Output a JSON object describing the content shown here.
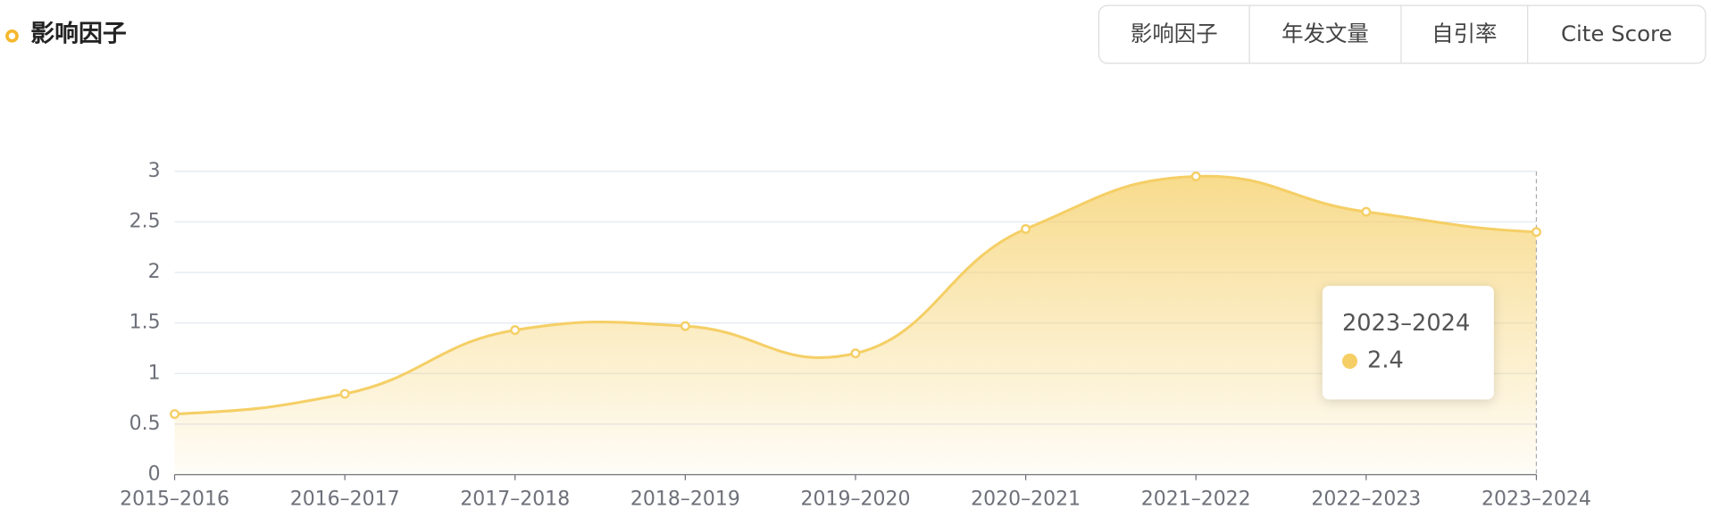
{
  "chart_data": {
    "type": "line",
    "title": "影响因子",
    "categories": [
      "2015–2016",
      "2016–2017",
      "2017–2018",
      "2018–2019",
      "2019–2020",
      "2020–2021",
      "2021–2022",
      "2022–2023",
      "2023–2024"
    ],
    "values": [
      0.6,
      0.8,
      1.43,
      1.47,
      1.2,
      2.43,
      2.95,
      2.6,
      2.4
    ],
    "color": "#f5cf66",
    "ylim": [
      0,
      3
    ],
    "yticks": [
      0,
      0.5,
      1,
      1.5,
      2,
      2.5,
      3
    ],
    "grid": true
  },
  "tabs": [
    "影响因子",
    "年发文量",
    "自引率",
    "Cite Score"
  ]
}
